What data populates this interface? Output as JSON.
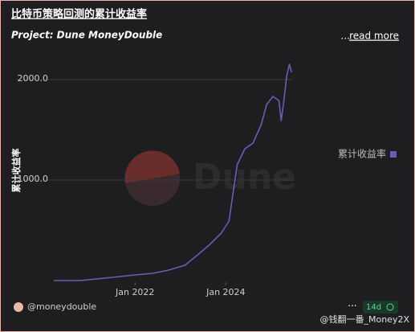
{
  "chart_data": {
    "type": "line",
    "title": "比特币策略回测的累计收益率",
    "subtitle": "Project: Dune MoneyDouble",
    "more": "...",
    "link": "read more",
    "ylabel": "累计收益率",
    "watermark": "Dune",
    "author": "@moneydouble",
    "age": "14d",
    "menu": "···",
    "credit": "@钱翻一番_Money2X",
    "xlim": [
      2020.21,
      2025.48
    ],
    "xticks": [
      {
        "value": 2022,
        "label": "Jan 2022"
      },
      {
        "value": 2024,
        "label": "Jan 2024"
      }
    ],
    "ylim": [
      0,
      2200
    ],
    "yticks": [
      {
        "value": 1000,
        "label": "1000.0"
      },
      {
        "value": 2000,
        "label": "2000.0"
      }
    ],
    "grid": true,
    "legend": "right",
    "x": [
      2020.21,
      2020.8,
      2021.15,
      2021.5,
      2022.0,
      2022.39,
      2022.74,
      2023.1,
      2023.36,
      2023.63,
      2023.9,
      2024.07,
      2024.16,
      2024.25,
      2024.42,
      2024.6,
      2024.78,
      2024.9,
      2025.04,
      2025.17,
      2025.22,
      2025.27,
      2025.34,
      2025.4,
      2025.45
    ],
    "series": [
      {
        "name": "累计收益率",
        "color": "#6c5bb8",
        "values": [
          0,
          0,
          16,
          32,
          56,
          72,
          104,
          152,
          248,
          352,
          472,
          592,
          872,
          1152,
          1312,
          1368,
          1552,
          1752,
          1832,
          1792,
          1592,
          1752,
          2032,
          2152,
          2072
        ]
      }
    ]
  }
}
